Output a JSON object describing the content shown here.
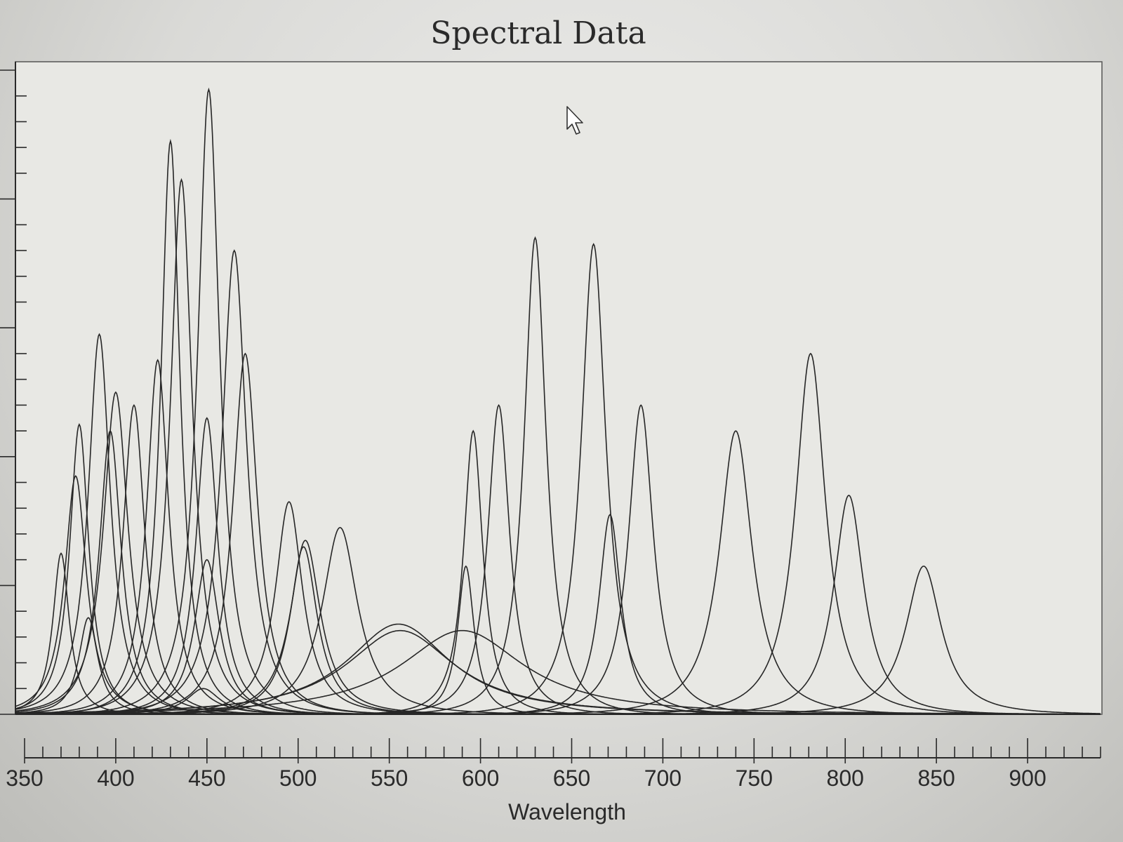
{
  "chart_data": {
    "type": "line",
    "title": "Spectral Data",
    "xlabel": "Wavelength",
    "ylabel": "",
    "xlim": [
      350,
      940
    ],
    "ylim": [
      0,
      1.0
    ],
    "x_ticks": [
      350,
      400,
      450,
      500,
      550,
      600,
      650,
      700,
      750,
      800,
      850,
      900
    ],
    "x_minor_step": 10,
    "y_major_step": 0.2,
    "y_minor_step": 0.04,
    "y_tick_labels_shown": false,
    "grid": false,
    "legend": "none",
    "line_color": "#262626",
    "series": [
      {
        "peak": 370,
        "height": 0.25,
        "width": 6
      },
      {
        "peak": 378,
        "height": 0.37,
        "width": 8
      },
      {
        "peak": 380,
        "height": 0.45,
        "width": 7
      },
      {
        "peak": 385,
        "height": 0.15,
        "width": 7
      },
      {
        "peak": 391,
        "height": 0.59,
        "width": 8
      },
      {
        "peak": 397,
        "height": 0.44,
        "width": 8
      },
      {
        "peak": 400,
        "height": 0.5,
        "width": 9
      },
      {
        "peak": 410,
        "height": 0.48,
        "width": 8
      },
      {
        "peak": 423,
        "height": 0.55,
        "width": 8
      },
      {
        "peak": 430,
        "height": 0.89,
        "width": 7
      },
      {
        "peak": 436,
        "height": 0.83,
        "width": 8
      },
      {
        "peak": 448,
        "height": 0.04,
        "width": 12
      },
      {
        "peak": 450,
        "height": 0.24,
        "width": 9
      },
      {
        "peak": 450,
        "height": 0.46,
        "width": 8
      },
      {
        "peak": 451,
        "height": 0.97,
        "width": 8
      },
      {
        "peak": 465,
        "height": 0.72,
        "width": 9
      },
      {
        "peak": 471,
        "height": 0.56,
        "width": 9
      },
      {
        "peak": 495,
        "height": 0.33,
        "width": 10
      },
      {
        "peak": 503,
        "height": 0.26,
        "width": 10
      },
      {
        "peak": 504,
        "height": 0.27,
        "width": 11
      },
      {
        "peak": 523,
        "height": 0.29,
        "width": 13
      },
      {
        "peak": 555,
        "height": 0.14,
        "width": 38
      },
      {
        "peak": 556,
        "height": 0.13,
        "width": 40
      },
      {
        "peak": 590,
        "height": 0.13,
        "width": 45
      },
      {
        "peak": 592,
        "height": 0.23,
        "width": 6
      },
      {
        "peak": 596,
        "height": 0.44,
        "width": 7
      },
      {
        "peak": 610,
        "height": 0.48,
        "width": 8
      },
      {
        "peak": 630,
        "height": 0.74,
        "width": 8
      },
      {
        "peak": 662,
        "height": 0.73,
        "width": 9
      },
      {
        "peak": 671,
        "height": 0.31,
        "width": 8
      },
      {
        "peak": 688,
        "height": 0.48,
        "width": 9
      },
      {
        "peak": 740,
        "height": 0.44,
        "width": 12
      },
      {
        "peak": 781,
        "height": 0.56,
        "width": 11
      },
      {
        "peak": 802,
        "height": 0.34,
        "width": 11
      },
      {
        "peak": 843,
        "height": 0.23,
        "width": 13
      }
    ]
  }
}
